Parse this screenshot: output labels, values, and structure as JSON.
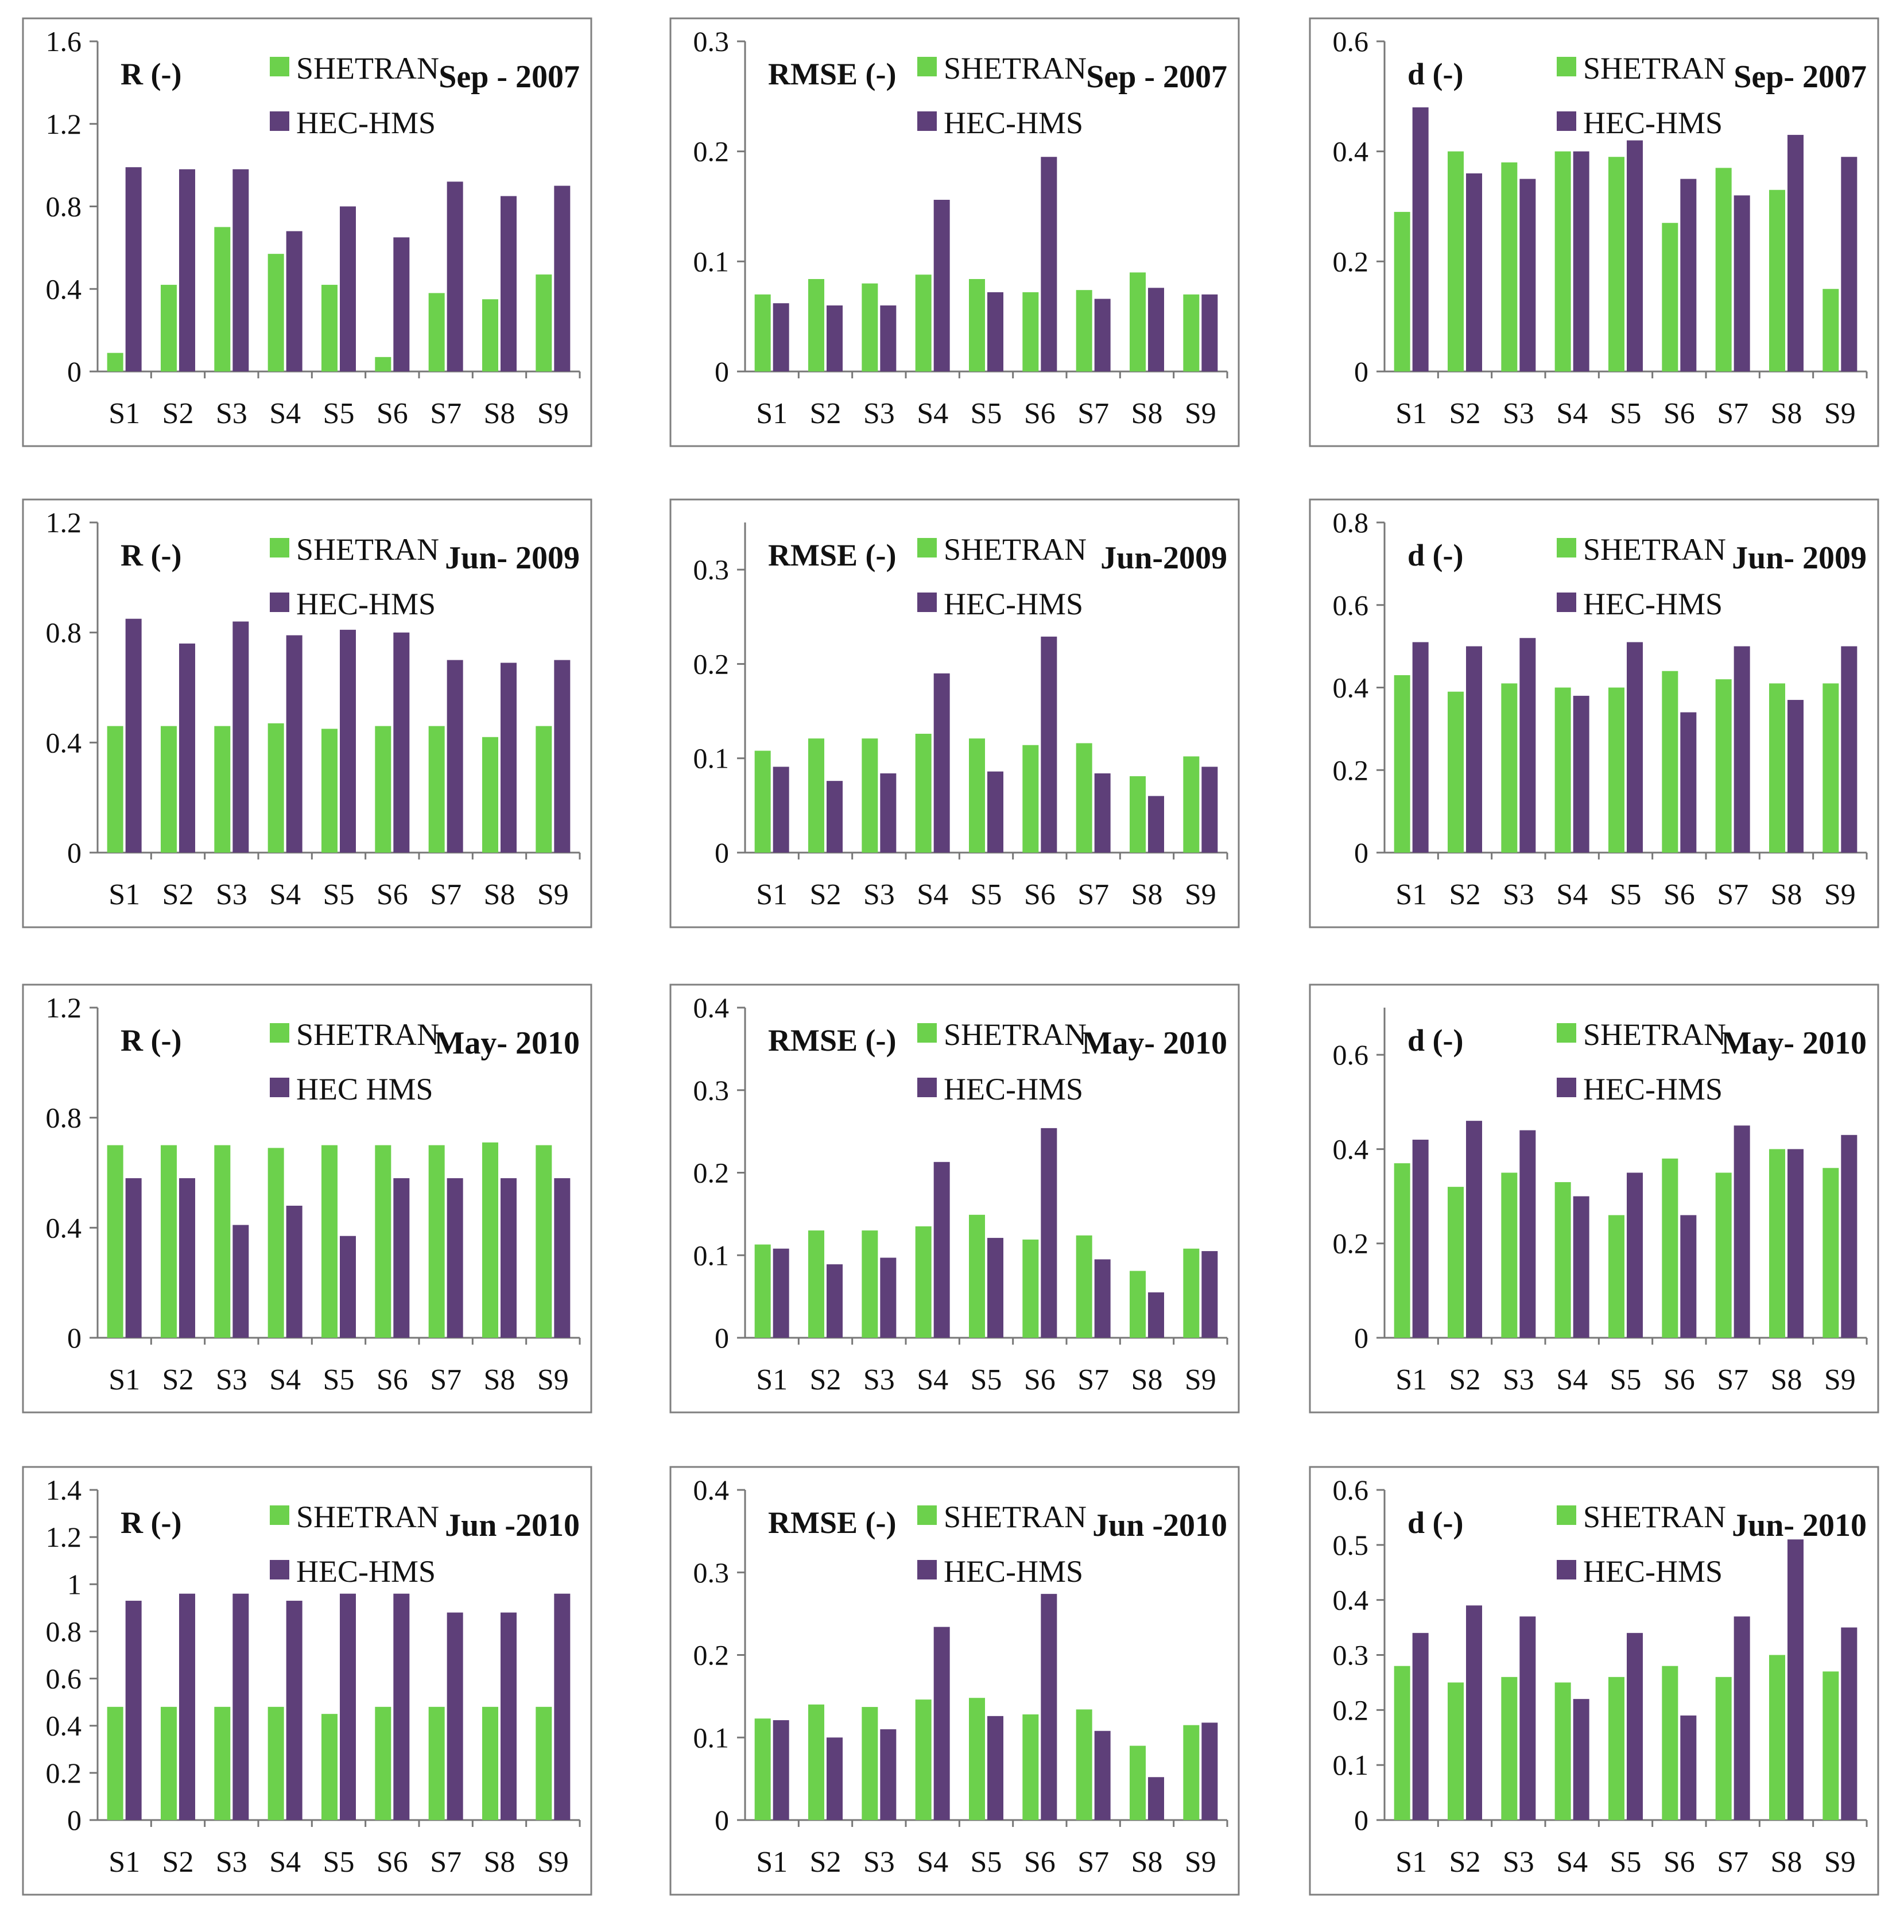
{
  "legend_labels": {
    "shetran": "SHETRAN",
    "hec": "HEC-HMS"
  },
  "colors": {
    "shetran": "#6cd14c",
    "hec": "#5e3f79",
    "frame": "#7f7f7f",
    "text": "#111111"
  },
  "chart_data": [
    {
      "type": "bar",
      "metric": "R (-)",
      "period": "Sep - 2007",
      "categories": [
        "S1",
        "S2",
        "S3",
        "S4",
        "S5",
        "S6",
        "S7",
        "S8",
        "S9"
      ],
      "ylim": [
        0,
        1.6
      ],
      "yticks": [
        "0",
        "0.4",
        "0.8",
        "1.2",
        "1.6"
      ],
      "series": [
        {
          "name": "SHETRAN",
          "values": [
            0.09,
            0.42,
            0.7,
            0.57,
            0.42,
            0.07,
            0.38,
            0.35,
            0.47
          ]
        },
        {
          "name": "HEC-HMS",
          "values": [
            0.99,
            0.98,
            0.98,
            0.68,
            0.8,
            0.65,
            0.92,
            0.85,
            0.9
          ]
        }
      ]
    },
    {
      "type": "bar",
      "metric": "RMSE (-)",
      "period": "Sep - 2007",
      "categories": [
        "S1",
        "S2",
        "S3",
        "S4",
        "S5",
        "S6",
        "S7",
        "S8",
        "S9"
      ],
      "ylim": [
        0,
        0.3
      ],
      "yticks": [
        "0",
        "0.1",
        "0.2",
        "0.3"
      ],
      "series": [
        {
          "name": "SHETRAN",
          "values": [
            0.07,
            0.084,
            0.08,
            0.088,
            0.084,
            0.072,
            0.074,
            0.09,
            0.07
          ]
        },
        {
          "name": "HEC-HMS",
          "values": [
            0.062,
            0.06,
            0.06,
            0.156,
            0.072,
            0.195,
            0.066,
            0.076,
            0.07
          ]
        }
      ]
    },
    {
      "type": "bar",
      "metric": "d (-)",
      "period": "Sep- 2007",
      "categories": [
        "S1",
        "S2",
        "S3",
        "S4",
        "S5",
        "S6",
        "S7",
        "S8",
        "S9"
      ],
      "ylim": [
        0,
        0.6
      ],
      "yticks": [
        "0",
        "0.2",
        "0.4",
        "0.6"
      ],
      "series": [
        {
          "name": "SHETRAN",
          "values": [
            0.29,
            0.4,
            0.38,
            0.4,
            0.39,
            0.27,
            0.37,
            0.33,
            0.15
          ]
        },
        {
          "name": "HEC-HMS",
          "values": [
            0.48,
            0.36,
            0.35,
            0.4,
            0.42,
            0.35,
            0.32,
            0.43,
            0.39
          ]
        }
      ]
    },
    {
      "type": "bar",
      "metric": "R (-)",
      "period": "Jun- 2009",
      "categories": [
        "S1",
        "S2",
        "S3",
        "S4",
        "S5",
        "S6",
        "S7",
        "S8",
        "S9"
      ],
      "ylim": [
        0,
        1.2
      ],
      "yticks": [
        "0",
        "0.4",
        "0.8",
        "1.2"
      ],
      "series": [
        {
          "name": "SHETRAN",
          "values": [
            0.46,
            0.46,
            0.46,
            0.47,
            0.45,
            0.46,
            0.46,
            0.42,
            0.46
          ]
        },
        {
          "name": "HEC-HMS",
          "values": [
            0.85,
            0.76,
            0.84,
            0.79,
            0.81,
            0.8,
            0.7,
            0.69,
            0.7
          ]
        }
      ]
    },
    {
      "type": "bar",
      "metric": "RMSE (-)",
      "period": "Jun-2009",
      "categories": [
        "S1",
        "S2",
        "S3",
        "S4",
        "S5",
        "S6",
        "S7",
        "S8",
        "S9"
      ],
      "ylim": [
        0,
        0.35
      ],
      "yticks": [
        "0",
        "0.1",
        "0.2",
        "0.3"
      ],
      "series": [
        {
          "name": "SHETRAN",
          "values": [
            0.108,
            0.121,
            0.121,
            0.126,
            0.121,
            0.114,
            0.116,
            0.081,
            0.102
          ]
        },
        {
          "name": "HEC-HMS",
          "values": [
            0.091,
            0.076,
            0.084,
            0.19,
            0.086,
            0.229,
            0.084,
            0.06,
            0.091
          ]
        }
      ]
    },
    {
      "type": "bar",
      "metric": "d (-)",
      "period": "Jun- 2009",
      "categories": [
        "S1",
        "S2",
        "S3",
        "S4",
        "S5",
        "S6",
        "S7",
        "S8",
        "S9"
      ],
      "ylim": [
        0,
        0.8
      ],
      "yticks": [
        "0",
        "0.2",
        "0.4",
        "0.6",
        "0.8"
      ],
      "series": [
        {
          "name": "SHETRAN",
          "values": [
            0.43,
            0.39,
            0.41,
            0.4,
            0.4,
            0.44,
            0.42,
            0.41,
            0.41
          ]
        },
        {
          "name": "HEC-HMS",
          "values": [
            0.51,
            0.5,
            0.52,
            0.38,
            0.51,
            0.34,
            0.5,
            0.37,
            0.5
          ]
        }
      ]
    },
    {
      "type": "bar",
      "metric": "R (-)",
      "period": "May- 2010",
      "categories": [
        "S1",
        "S2",
        "S3",
        "S4",
        "S5",
        "S6",
        "S7",
        "S8",
        "S9"
      ],
      "ylim": [
        0,
        1.2
      ],
      "yticks": [
        "0",
        "0.4",
        "0.8",
        "1.2"
      ],
      "series": [
        {
          "name": "SHETRAN",
          "values": [
            0.7,
            0.7,
            0.7,
            0.69,
            0.7,
            0.7,
            0.7,
            0.71,
            0.7
          ]
        },
        {
          "name": "HEC HMS",
          "values": [
            0.58,
            0.58,
            0.41,
            0.48,
            0.37,
            0.58,
            0.58,
            0.58,
            0.58
          ]
        }
      ]
    },
    {
      "type": "bar",
      "metric": "RMSE (-)",
      "period": "May- 2010",
      "categories": [
        "S1",
        "S2",
        "S3",
        "S4",
        "S5",
        "S6",
        "S7",
        "S8",
        "S9"
      ],
      "ylim": [
        0,
        0.4
      ],
      "yticks": [
        "0",
        "0.1",
        "0.2",
        "0.3",
        "0.4"
      ],
      "series": [
        {
          "name": "SHETRAN",
          "values": [
            0.113,
            0.13,
            0.13,
            0.135,
            0.149,
            0.119,
            0.124,
            0.081,
            0.108
          ]
        },
        {
          "name": "HEC-HMS",
          "values": [
            0.108,
            0.089,
            0.097,
            0.213,
            0.121,
            0.254,
            0.095,
            0.055,
            0.105
          ]
        }
      ]
    },
    {
      "type": "bar",
      "metric": "d (-)",
      "period": "May- 2010",
      "categories": [
        "S1",
        "S2",
        "S3",
        "S4",
        "S5",
        "S6",
        "S7",
        "S8",
        "S9"
      ],
      "ylim": [
        0,
        0.7
      ],
      "yticks": [
        "0",
        "0.2",
        "0.4",
        "0.6"
      ],
      "series": [
        {
          "name": "SHETRAN",
          "values": [
            0.37,
            0.32,
            0.35,
            0.33,
            0.26,
            0.38,
            0.35,
            0.4,
            0.36
          ]
        },
        {
          "name": "HEC-HMS",
          "values": [
            0.42,
            0.46,
            0.44,
            0.3,
            0.35,
            0.26,
            0.45,
            0.4,
            0.43
          ]
        }
      ]
    },
    {
      "type": "bar",
      "metric": "R (-)",
      "period": "Jun -2010",
      "categories": [
        "S1",
        "S2",
        "S3",
        "S4",
        "S5",
        "S6",
        "S7",
        "S8",
        "S9"
      ],
      "ylim": [
        0,
        1.4
      ],
      "yticks": [
        "0",
        "0.2",
        "0.4",
        "0.6",
        "0.8",
        "1",
        "1.2",
        "1.4"
      ],
      "series": [
        {
          "name": "SHETRAN",
          "values": [
            0.48,
            0.48,
            0.48,
            0.48,
            0.45,
            0.48,
            0.48,
            0.48,
            0.48
          ]
        },
        {
          "name": "HEC-HMS",
          "values": [
            0.93,
            0.96,
            0.96,
            0.93,
            0.96,
            0.96,
            0.88,
            0.88,
            0.96
          ]
        }
      ]
    },
    {
      "type": "bar",
      "metric": "RMSE (-)",
      "period": "Jun -2010",
      "categories": [
        "S1",
        "S2",
        "S3",
        "S4",
        "S5",
        "S6",
        "S7",
        "S8",
        "S9"
      ],
      "ylim": [
        0,
        0.4
      ],
      "yticks": [
        "0",
        "0.1",
        "0.2",
        "0.3",
        "0.4"
      ],
      "series": [
        {
          "name": "SHETRAN",
          "values": [
            0.123,
            0.14,
            0.137,
            0.146,
            0.148,
            0.128,
            0.134,
            0.09,
            0.115
          ]
        },
        {
          "name": "HEC-HMS",
          "values": [
            0.121,
            0.1,
            0.11,
            0.234,
            0.126,
            0.274,
            0.108,
            0.052,
            0.118
          ]
        }
      ]
    },
    {
      "type": "bar",
      "metric": "d (-)",
      "period": "Jun- 2010",
      "categories": [
        "S1",
        "S2",
        "S3",
        "S4",
        "S5",
        "S6",
        "S7",
        "S8",
        "S9"
      ],
      "ylim": [
        0,
        0.6
      ],
      "yticks": [
        "0",
        "0.1",
        "0.2",
        "0.3",
        "0.4",
        "0.5",
        "0.6"
      ],
      "series": [
        {
          "name": "SHETRAN",
          "values": [
            0.28,
            0.25,
            0.26,
            0.25,
            0.26,
            0.28,
            0.26,
            0.3,
            0.27
          ]
        },
        {
          "name": "HEC-HMS",
          "values": [
            0.34,
            0.39,
            0.37,
            0.22,
            0.34,
            0.19,
            0.37,
            0.51,
            0.35
          ]
        }
      ]
    }
  ]
}
